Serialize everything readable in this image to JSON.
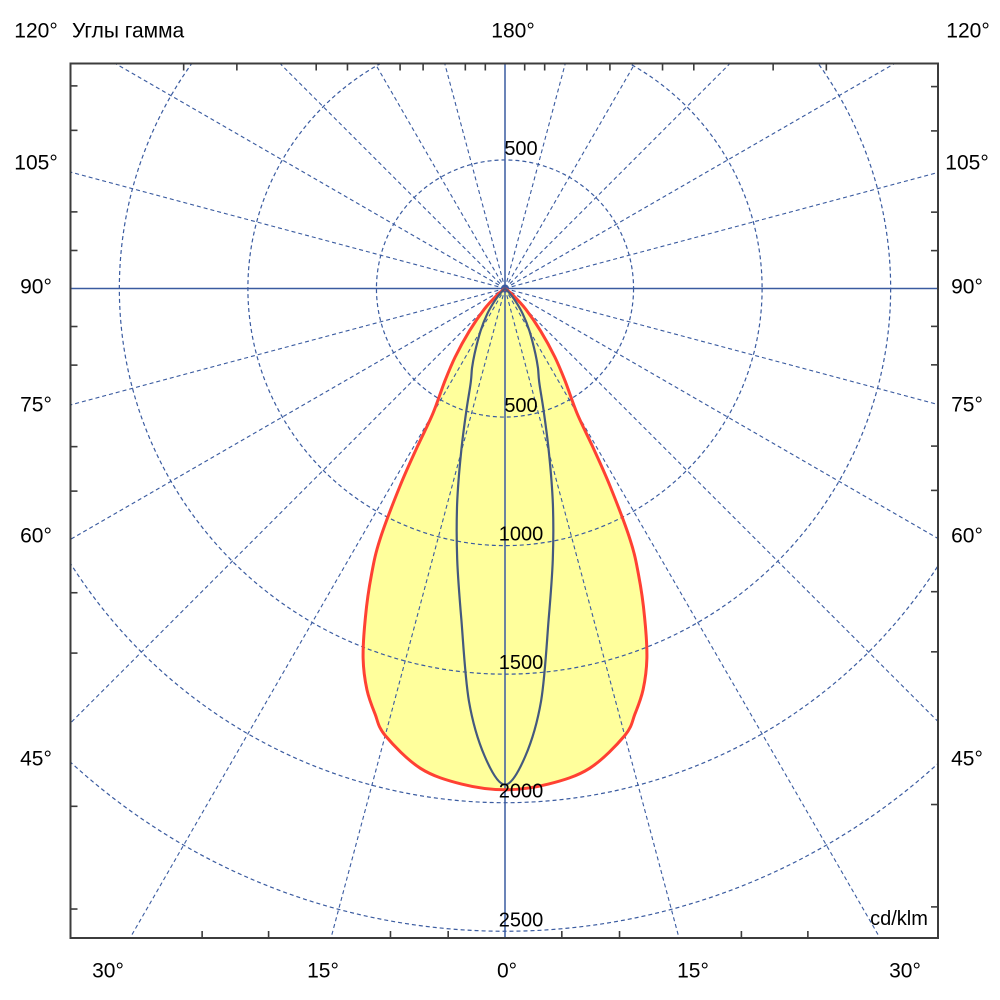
{
  "chart_data": {
    "type": "polar",
    "title": "Углы гамма",
    "unit": "cd/klm",
    "radial_axis": {
      "ticks": [
        500,
        1000,
        1500,
        2000,
        2500
      ],
      "tick_labels": [
        "500",
        "1000",
        "1500",
        "2000",
        "2500"
      ],
      "unit": "cd/klm",
      "min": 0,
      "max": 2500,
      "grid_circle_step": 500
    },
    "angular_axis": {
      "ray_step_deg": 15,
      "minor_tick_step_deg": 5,
      "top_left": "120°",
      "top_center": "180°",
      "top_right": "120°",
      "left": [
        "105°",
        "90°",
        "75°",
        "60°",
        "45°"
      ],
      "right": [
        "105°",
        "90°",
        "75°",
        "60°",
        "45°"
      ],
      "bottom": [
        "30°",
        "15°",
        "0°",
        "15°",
        "30°"
      ]
    },
    "series": [
      {
        "id": "wide-lobe-red-yellow",
        "stroke": "#ff4133",
        "fill": "#ffff9c",
        "style": "solid",
        "gamma_deg": [
          0,
          5,
          10,
          15,
          17,
          19,
          21,
          23,
          25,
          26.5,
          28,
          29,
          30,
          33,
          36,
          40,
          45,
          50
        ],
        "intensity_cd_klm": [
          1950,
          1935,
          1895,
          1800,
          1730,
          1650,
          1540,
          1390,
          1230,
          1090,
          870,
          700,
          560,
          430,
          330,
          215,
          115,
          40
        ]
      },
      {
        "id": "narrow-lobe-dark-blue",
        "stroke": "#44597e",
        "fill": "none",
        "style": "solid",
        "gamma_deg": [
          0,
          2.5,
          5,
          7.5,
          10,
          12.5,
          15,
          17.5,
          20,
          22.5,
          25,
          30,
          35,
          40,
          45
        ],
        "intensity_cd_klm": [
          1930,
          1820,
          1610,
          1300,
          1070,
          860,
          660,
          500,
          390,
          335,
          280,
          190,
          120,
          60,
          20
        ]
      }
    ],
    "grid": {
      "on": true,
      "line_style": "dashed",
      "color": "#3a5ba0"
    },
    "colors": {
      "grid": "#3a5ba0",
      "frame": "#3c3c3c",
      "text": "#000000"
    }
  }
}
